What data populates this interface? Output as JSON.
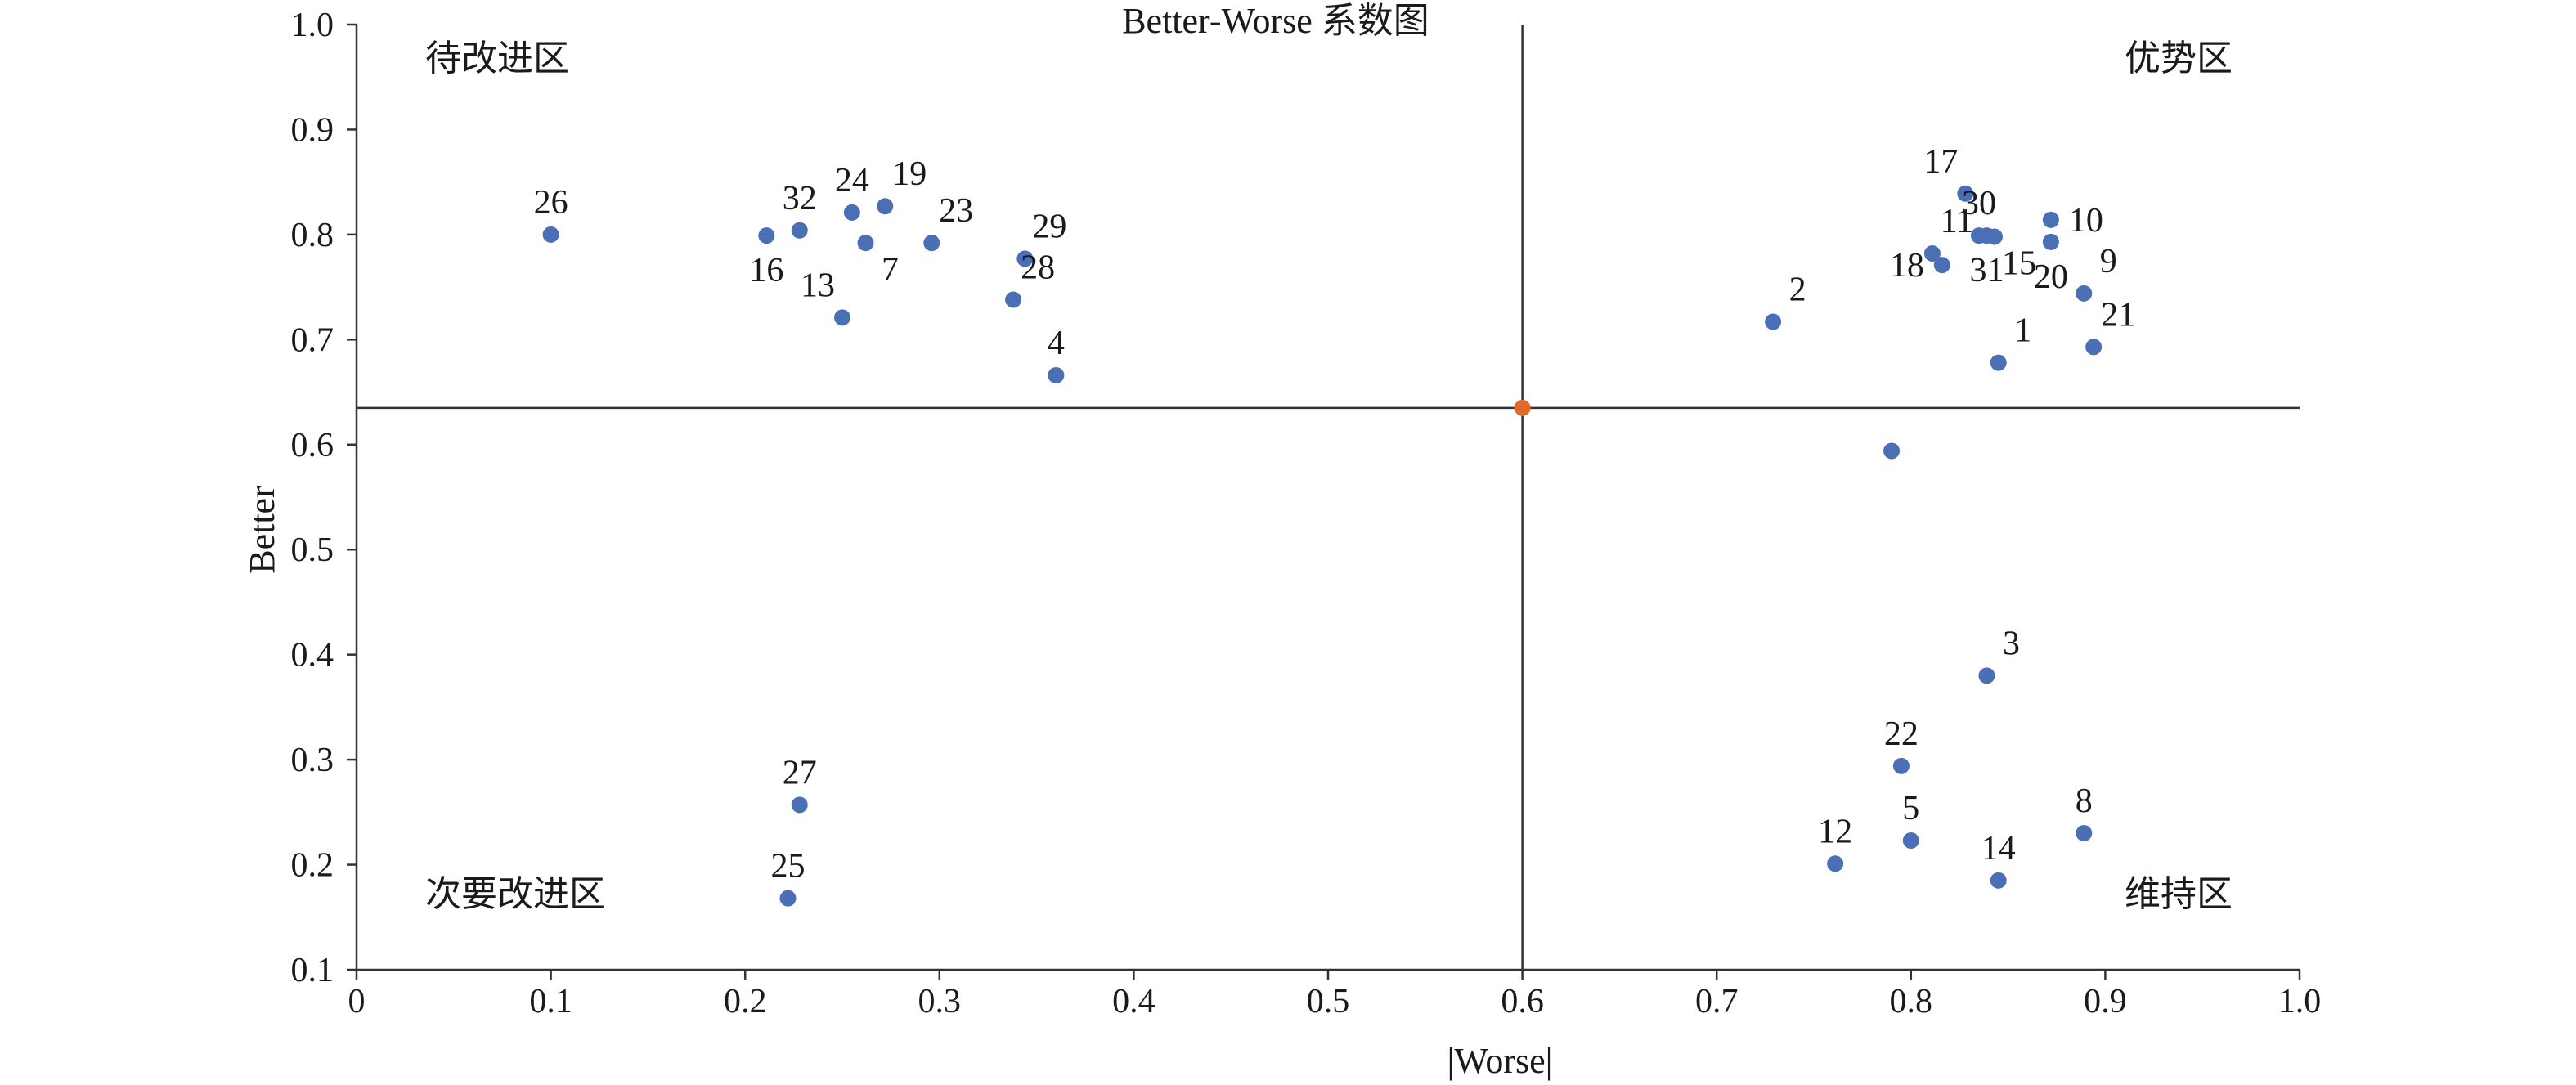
{
  "chart_data": {
    "type": "scatter",
    "title": "Better-Worse 系数图",
    "xlabel": "|Worse|",
    "ylabel": "Better",
    "xlim": [
      0,
      1.0
    ],
    "ylim": [
      0.1,
      1.0
    ],
    "x_ticks": [
      "0",
      "0.1",
      "0.2",
      "0.3",
      "0.4",
      "0.5",
      "0.6",
      "0.7",
      "0.8",
      "0.9",
      "1.0"
    ],
    "y_ticks": [
      "0.1",
      "0.2",
      "0.3",
      "0.4",
      "0.5",
      "0.6",
      "0.7",
      "0.8",
      "0.9",
      "1.0"
    ],
    "x_tick_values": [
      0,
      0.1,
      0.2,
      0.3,
      0.4,
      0.5,
      0.6,
      0.7,
      0.8,
      0.9,
      1.0
    ],
    "y_tick_values": [
      0.1,
      0.2,
      0.3,
      0.4,
      0.5,
      0.6,
      0.7,
      0.8,
      0.9,
      1.0
    ],
    "grid": false,
    "reference_lines": {
      "x": 0.6,
      "y": 0.635
    },
    "mean_point": {
      "x": 0.6,
      "y": 0.635,
      "color": "#e06a2b"
    },
    "point_color": "#4a6fb5",
    "quadrant_labels": {
      "top_left": "待改进区",
      "top_right": "优势区",
      "bottom_left": "次要改进区",
      "bottom_right": "维持区"
    },
    "points": [
      {
        "label": "1",
        "x": 0.845,
        "y": 0.678,
        "label_pos": "above-right"
      },
      {
        "label": "2",
        "x": 0.729,
        "y": 0.717,
        "label_pos": "above-right"
      },
      {
        "label": "3",
        "x": 0.839,
        "y": 0.38,
        "label_pos": "above-right"
      },
      {
        "label": "4",
        "x": 0.36,
        "y": 0.666,
        "label_pos": "above"
      },
      {
        "label": "5",
        "x": 0.8,
        "y": 0.223,
        "label_pos": "above"
      },
      {
        "label": "7",
        "x": 0.262,
        "y": 0.792,
        "label_pos": "below-right"
      },
      {
        "label": "8",
        "x": 0.889,
        "y": 0.23,
        "label_pos": "above"
      },
      {
        "label": "9",
        "x": 0.889,
        "y": 0.744,
        "label_pos": "above-right"
      },
      {
        "label": "10",
        "x": 0.872,
        "y": 0.814,
        "label_pos": "right"
      },
      {
        "label": "11",
        "x": 0.811,
        "y": 0.782,
        "label_pos": "above-right"
      },
      {
        "label": "12",
        "x": 0.761,
        "y": 0.201,
        "label_pos": "above"
      },
      {
        "label": "13",
        "x": 0.25,
        "y": 0.721,
        "label_pos": "above-left"
      },
      {
        "label": "14",
        "x": 0.845,
        "y": 0.185,
        "label_pos": "above"
      },
      {
        "label": "15",
        "x": 0.843,
        "y": 0.798,
        "label_pos": "below-right"
      },
      {
        "label": "16",
        "x": 0.211,
        "y": 0.799,
        "label_pos": "below"
      },
      {
        "label": "17",
        "x": 0.828,
        "y": 0.839,
        "label_pos": "above-left"
      },
      {
        "label": "18",
        "x": 0.816,
        "y": 0.771,
        "label_pos": "left"
      },
      {
        "label": "19",
        "x": 0.272,
        "y": 0.827,
        "label_pos": "above-right"
      },
      {
        "label": "20",
        "x": 0.872,
        "y": 0.793,
        "label_pos": "below"
      },
      {
        "label": "21",
        "x": 0.894,
        "y": 0.693,
        "label_pos": "above-right"
      },
      {
        "label": "22",
        "x": 0.795,
        "y": 0.294,
        "label_pos": "above"
      },
      {
        "label": "23",
        "x": 0.296,
        "y": 0.792,
        "label_pos": "above-right"
      },
      {
        "label": "24",
        "x": 0.255,
        "y": 0.821,
        "label_pos": "above"
      },
      {
        "label": "25",
        "x": 0.222,
        "y": 0.168,
        "label_pos": "above"
      },
      {
        "label": "26",
        "x": 0.1,
        "y": 0.8,
        "label_pos": "above"
      },
      {
        "label": "27",
        "x": 0.228,
        "y": 0.257,
        "label_pos": "above"
      },
      {
        "label": "28",
        "x": 0.338,
        "y": 0.738,
        "label_pos": "above-right"
      },
      {
        "label": "29",
        "x": 0.344,
        "y": 0.777,
        "label_pos": "above-right"
      },
      {
        "label": "30",
        "x": 0.835,
        "y": 0.799,
        "label_pos": "above"
      },
      {
        "label": "31",
        "x": 0.839,
        "y": 0.799,
        "label_pos": "below"
      },
      {
        "label": "32",
        "x": 0.228,
        "y": 0.804,
        "label_pos": "above"
      },
      {
        "label": "",
        "x": 0.79,
        "y": 0.594,
        "label_pos": "none"
      }
    ]
  }
}
